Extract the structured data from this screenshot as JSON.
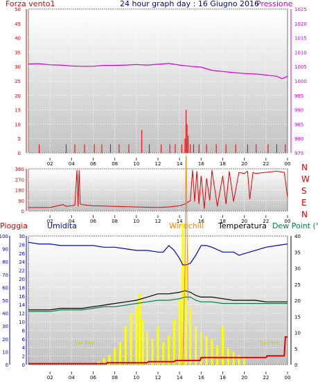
{
  "colors": {
    "wind": "#e00000",
    "pressure": "#d400d4",
    "title": "#0000a0",
    "humidity": "#0000cc",
    "windchill": "#ff8000",
    "temperature": "#000000",
    "dewpoint": "#008040",
    "rain_bars": "#ffff00",
    "sun_label": "#c8c800"
  },
  "header": {
    "left": "Forza vento1",
    "title": "24 hour graph day : 16 Giugno 2016",
    "right": "Pressione"
  },
  "dir_labels": [
    "N",
    "W",
    "S",
    "E",
    "N"
  ],
  "panel3_labels": {
    "rain": "Pioggia",
    "humidity": "Umidita",
    "windchill": "Windchill",
    "temperature": "Temperatura",
    "dewpoint": "Dew Point (°C"
  },
  "sun": {
    "rise": "Sun Rise",
    "set": "Sun Set"
  },
  "chart_data": [
    {
      "type": "line",
      "title": "24 hour graph day : 16 Giugno 2016",
      "x_ticks": [
        "02",
        "04",
        "06",
        "08",
        "10",
        "12",
        "14",
        "16",
        "18",
        "20",
        "22",
        "00"
      ],
      "y_left": {
        "label": "Forza vento1",
        "range": [
          0,
          50
        ],
        "ticks": [
          0,
          5,
          10,
          15,
          20,
          25,
          30,
          35,
          40,
          45,
          50
        ]
      },
      "y_right": {
        "label": "Pressione",
        "range": [
          975,
          1025
        ],
        "ticks": [
          975,
          980,
          985,
          990,
          995,
          1000,
          1005,
          1010,
          1015,
          1020,
          1025
        ]
      },
      "series": [
        {
          "name": "Pressione",
          "hours": [
            0,
            1,
            2,
            3,
            4,
            5,
            6,
            7,
            8,
            9,
            10,
            11,
            12,
            13,
            14,
            15,
            16,
            17,
            18,
            19,
            20,
            21,
            22,
            23,
            23.5,
            24
          ],
          "values": [
            1005.9,
            1006,
            1005.6,
            1005.5,
            1005.2,
            1005.1,
            1005.1,
            1005.4,
            1005.4,
            1005.5,
            1005.7,
            1005.5,
            1005.8,
            1006.1,
            1005.5,
            1005.1,
            1004.8,
            1003.7,
            1003.3,
            1002.9,
            1002.6,
            1002.4,
            1002.1,
            1001.6,
            1000.8,
            1001.6
          ]
        },
        {
          "name": "Forza vento1",
          "hours": [
            1,
            3.5,
            4.3,
            5.2,
            6.1,
            6.8,
            7.6,
            8.4,
            9.3,
            10.5,
            11.2,
            12.3,
            13.1,
            13.6,
            14.2,
            14.5,
            14.6,
            14.7,
            14.8,
            15.0,
            15.3,
            15.8,
            16.5,
            17.4,
            18.3,
            19.2,
            20.3,
            21.1,
            22.2,
            23.0,
            23.8
          ],
          "values": [
            3,
            3,
            3,
            3,
            3,
            3,
            3,
            3,
            3,
            8,
            3,
            3,
            3,
            3,
            3,
            5,
            15,
            10,
            6,
            3,
            3,
            3,
            3,
            3,
            3,
            3,
            3,
            3,
            3,
            3,
            3
          ]
        }
      ]
    },
    {
      "type": "line",
      "x_ticks": [
        "02",
        "04",
        "06",
        "08",
        "10",
        "12",
        "14",
        "16",
        "18",
        "20",
        "22",
        "00"
      ],
      "y_left": {
        "range": [
          0,
          360
        ],
        "ticks": [
          0,
          90,
          180,
          270,
          360
        ]
      },
      "y_right_labels": [
        "N",
        "W",
        "S",
        "E",
        "N"
      ],
      "series": [
        {
          "name": "wind direction",
          "hours": [
            0,
            2,
            3.2,
            3.5,
            4,
            4.3,
            4.5,
            4.6,
            4.7,
            4.8,
            5,
            6,
            8,
            10,
            12,
            13,
            14,
            14.5,
            15,
            15.2,
            15.4,
            15.6,
            15.8,
            16,
            16.3,
            16.5,
            16.8,
            17,
            17.5,
            18,
            18.3,
            18.6,
            19,
            19.5,
            20,
            20.3,
            20.5,
            20.8,
            21,
            22,
            23,
            23.7,
            24
          ],
          "values": [
            30,
            30,
            55,
            40,
            45,
            50,
            350,
            40,
            350,
            60,
            55,
            45,
            40,
            35,
            30,
            35,
            45,
            60,
            90,
            350,
            80,
            340,
            60,
            300,
            20,
            280,
            90,
            350,
            40,
            300,
            60,
            340,
            80,
            330,
            320,
            340,
            100,
            330,
            320,
            330,
            340,
            330,
            120
          ]
        }
      ]
    },
    {
      "type": "line",
      "x_ticks": [
        "02",
        "04",
        "06",
        "08",
        "10",
        "12",
        "14",
        "16",
        "18",
        "20",
        "22",
        "00"
      ],
      "y_left_rain": {
        "label": "Pioggia",
        "range": [
          0,
          100
        ],
        "ticks": [
          0,
          10,
          20,
          30,
          40,
          50,
          60,
          70,
          80,
          90,
          100
        ]
      },
      "y_left_humidity": {
        "label": "Umidita",
        "range": [
          0,
          30
        ],
        "ticks": [
          0,
          2,
          4,
          6,
          8,
          10,
          12,
          14,
          16,
          18,
          20,
          22,
          24,
          26,
          28,
          30
        ]
      },
      "y_right": {
        "label": "Dew Point (°C",
        "range": [
          0,
          40
        ],
        "ticks": [
          0,
          5,
          10,
          15,
          20,
          25,
          30,
          35,
          40
        ]
      },
      "series": [
        {
          "name": "Umidita",
          "hours": [
            0,
            1,
            2,
            3,
            4,
            5,
            6,
            7,
            8,
            9,
            10,
            11,
            12,
            12.5,
            13,
            13.5,
            14,
            14.3,
            14.6,
            15,
            15.5,
            16,
            16.5,
            17,
            18,
            19,
            19.5,
            20,
            21,
            22,
            23,
            24
          ],
          "values": [
            38,
            37.5,
            37.5,
            37,
            37,
            37,
            37,
            36.5,
            36.5,
            36,
            35.5,
            35.5,
            35,
            35,
            37,
            35.5,
            33,
            31,
            31,
            31.5,
            34,
            37,
            37,
            36.5,
            35,
            35,
            34,
            34.5,
            35.5,
            36.5,
            37,
            37.5
          ]
        },
        {
          "name": "Temperatura",
          "hours": [
            0,
            1,
            2,
            3,
            4,
            5,
            6,
            7,
            8,
            9,
            10,
            11,
            12,
            13,
            14,
            14.5,
            15,
            15.5,
            16,
            17,
            18,
            19,
            20,
            21,
            22,
            23,
            24
          ],
          "values": [
            17,
            17,
            17,
            17.5,
            17.5,
            17.5,
            18,
            18.5,
            19,
            19.5,
            20,
            21,
            22,
            22,
            22.5,
            23,
            22.5,
            21.5,
            21,
            21,
            20.5,
            20,
            20,
            20,
            19.5,
            19.5,
            19.5
          ]
        },
        {
          "name": "Dew Point (°C",
          "hours": [
            0,
            1,
            2,
            3,
            4,
            5,
            6,
            7,
            8,
            9,
            10,
            11,
            12,
            13,
            14,
            14.5,
            15,
            15.5,
            16,
            17,
            18,
            19,
            20,
            21,
            22,
            23,
            24
          ],
          "values": [
            16.5,
            16.5,
            16.5,
            17,
            17,
            17,
            17.5,
            18,
            18,
            18.5,
            19,
            19.5,
            20,
            20,
            20.5,
            21,
            21,
            20,
            19.5,
            19.5,
            19,
            19,
            19,
            19,
            19,
            19,
            19
          ]
        },
        {
          "name": "Windchill",
          "hours": [
            14.3,
            14.5,
            14.6,
            14.7,
            14.8
          ],
          "values": [
            0,
            30,
            65,
            40,
            20
          ]
        },
        {
          "name": "Pioggia",
          "hours": [
            0,
            7.2,
            7.3,
            11,
            11.1,
            13.5,
            13.6,
            15.9,
            16,
            22,
            22.1,
            23.7,
            23.8,
            24
          ],
          "values": [
            0.3,
            0.3,
            0.6,
            0.6,
            0.9,
            0.9,
            1.3,
            1.3,
            2.2,
            2.2,
            2.7,
            2.7,
            8.6,
            8.6
          ]
        }
      ],
      "rain_bars": {
        "hours": [
          6.5,
          7,
          7.5,
          8,
          8.5,
          9,
          9.5,
          10,
          10.3,
          10.6,
          11,
          11.5,
          12,
          12.5,
          13,
          13.5,
          14,
          14.3,
          14.6,
          15,
          15.5,
          16,
          16.5,
          17,
          17.5,
          18,
          18.5,
          19,
          19.5,
          20
        ],
        "values": [
          1,
          2,
          3,
          5,
          7,
          12,
          16,
          18,
          22,
          14,
          10,
          8,
          12,
          7,
          9,
          14,
          20,
          44,
          32,
          18,
          12,
          10,
          9,
          8,
          6,
          12,
          5,
          4,
          3,
          2
        ]
      }
    }
  ]
}
